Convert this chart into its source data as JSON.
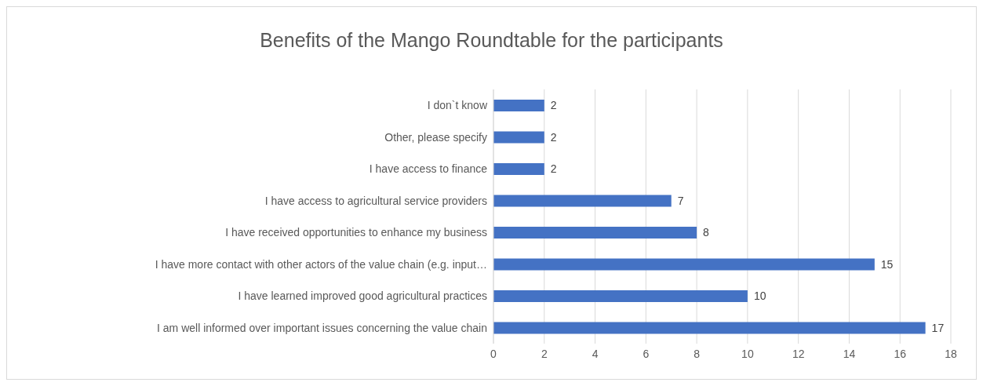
{
  "chart_data": {
    "type": "bar",
    "orientation": "horizontal",
    "title": "Benefits of the Mango Roundtable for the participants",
    "categories": [
      "I don`t know",
      "Other, please specify",
      "I have access to finance",
      "I have access to agricultural service providers",
      "I have received opportunities to enhance my business",
      "I have more contact with other actors of the value chain (e.g. input…",
      "I have learned improved good agricultural practices",
      "I am well informed over important issues concerning the value chain"
    ],
    "values": [
      2,
      2,
      2,
      7,
      8,
      15,
      10,
      17
    ],
    "color": "#4472c4",
    "xlim": [
      0,
      18
    ],
    "xticks": [
      0,
      2,
      4,
      6,
      8,
      10,
      12,
      14,
      16,
      18
    ],
    "grid": "x",
    "data_labels": true
  }
}
